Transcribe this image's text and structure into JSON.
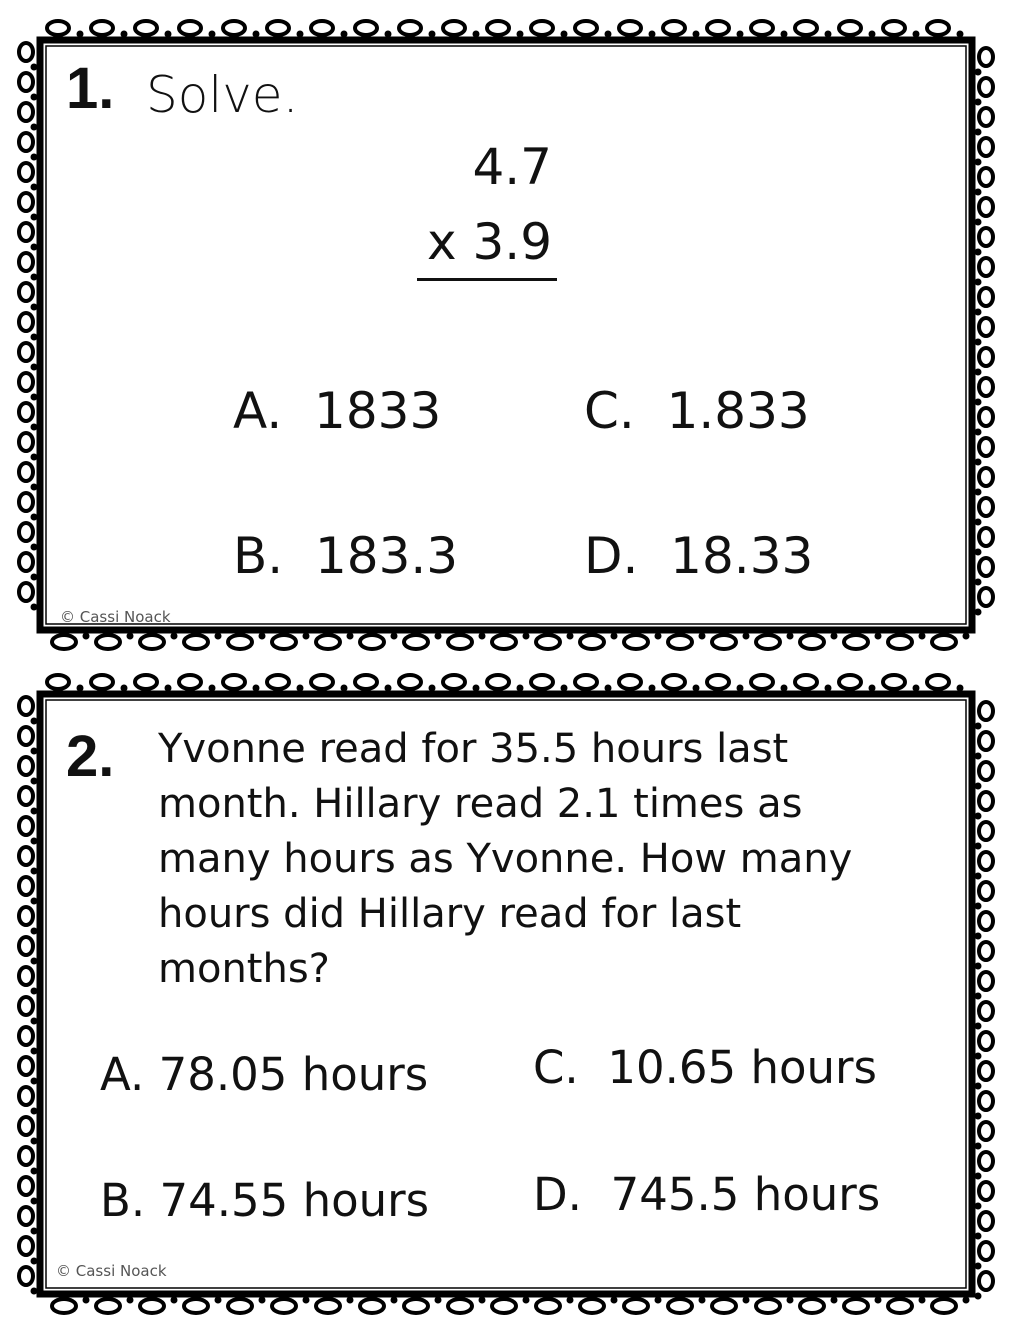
{
  "cards": [
    {
      "number": "1.",
      "prompt": "Solve.",
      "multiplicand": "4.7",
      "multiplier": "x 3.9",
      "choices": {
        "A": "A.  1833",
        "B": "B.  183.3",
        "C": "C.  1.833",
        "D": "D.  18.33"
      },
      "copyright": "© Cassi Noack"
    },
    {
      "number": "2.",
      "prompt": "Yvonne read for 35.5 hours last month. Hillary read 2.1 times as many hours as Yvonne. How many hours did Hillary read for last months?",
      "choices": {
        "A": "A. 78.05 hours",
        "B": "B. 74.55 hours",
        "C": "C.  10.65 hours",
        "D": "D.  745.5 hours"
      },
      "copyright": "© Cassi Noack"
    }
  ]
}
